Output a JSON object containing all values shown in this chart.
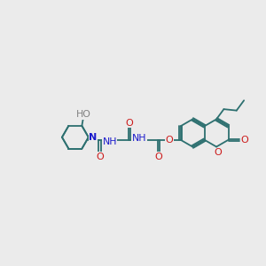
{
  "background_color": "#ebebeb",
  "bond_color": "#2d7070",
  "N_color": "#1a1acc",
  "O_color": "#cc1a1a",
  "H_color": "#808080",
  "lw": 1.3,
  "fig_width": 3.0,
  "fig_height": 3.0,
  "dpi": 100,
  "xlim": [
    0,
    10
  ],
  "ylim": [
    2,
    8
  ]
}
